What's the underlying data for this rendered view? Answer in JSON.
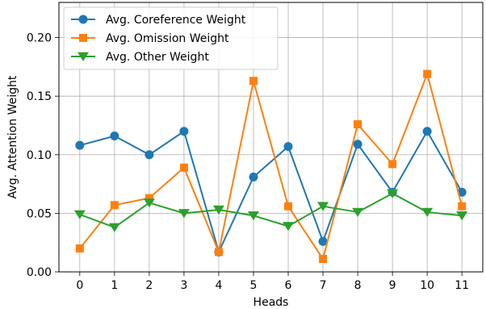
{
  "chart_data": {
    "type": "line",
    "title": "",
    "xlabel": "Heads",
    "ylabel": "Avg. Attention Weight",
    "x": [
      0,
      1,
      2,
      3,
      4,
      5,
      6,
      7,
      8,
      9,
      10,
      11
    ],
    "x_ticks": [
      "0",
      "1",
      "2",
      "3",
      "4",
      "5",
      "6",
      "7",
      "8",
      "9",
      "10",
      "11"
    ],
    "y_ticks": [
      "0.00",
      "0.05",
      "0.10",
      "0.15",
      "0.20"
    ],
    "xlim": [
      -0.6,
      11.6
    ],
    "ylim": [
      0,
      0.23
    ],
    "grid": true,
    "legend_position": "top-left",
    "series": [
      {
        "name": "Avg. Coreference Weight",
        "color": "#1f77b4",
        "marker": "circle",
        "values": [
          0.108,
          0.116,
          0.1,
          0.12,
          0.017,
          0.081,
          0.107,
          0.026,
          0.109,
          0.068,
          0.12,
          0.068
        ]
      },
      {
        "name": "Avg. Omission Weight",
        "color": "#ff7f0e",
        "marker": "square",
        "values": [
          0.02,
          0.057,
          0.063,
          0.089,
          0.017,
          0.163,
          0.056,
          0.011,
          0.126,
          0.092,
          0.169,
          0.056
        ]
      },
      {
        "name": "Avg. Other Weight",
        "color": "#2ca02c",
        "marker": "triangle-down",
        "values": [
          0.049,
          0.038,
          0.059,
          0.05,
          0.053,
          0.048,
          0.039,
          0.056,
          0.051,
          0.067,
          0.051,
          0.048
        ]
      }
    ]
  }
}
